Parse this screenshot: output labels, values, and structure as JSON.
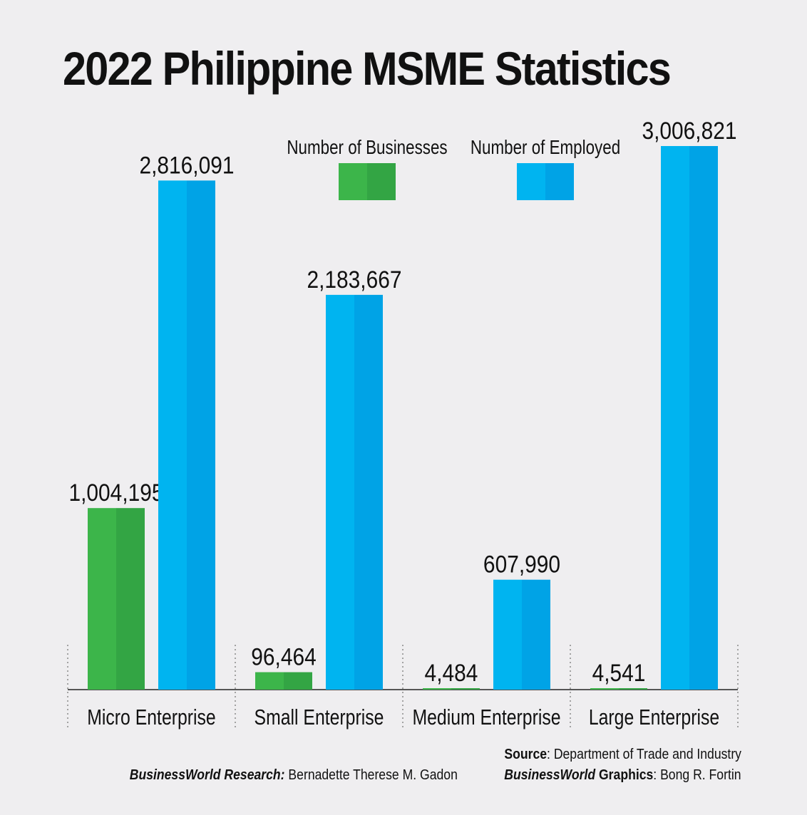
{
  "title": "2022 Philippine MSME Statistics",
  "chart_data": {
    "type": "bar",
    "title": "2022 Philippine MSME Statistics",
    "categories": [
      "Micro Enterprise",
      "Small Enterprise",
      "Medium Enterprise",
      "Large Enterprise"
    ],
    "series": [
      {
        "name": "Number of Businesses",
        "values": [
          1004195,
          96464,
          4484,
          4541
        ],
        "labels": [
          "1,004,195",
          "96,464",
          "4,484",
          "4,541"
        ],
        "color": "#3cb54a",
        "shade": "#33a544"
      },
      {
        "name": "Number of Employed",
        "values": [
          2816091,
          2183667,
          607990,
          3006821
        ],
        "labels": [
          "2,816,091",
          "2,183,667",
          "607,990",
          "3,006,821"
        ],
        "color": "#00b4f0",
        "shade": "#00a3e6"
      }
    ],
    "ylim": [
      0,
      3000000
    ],
    "grid": false,
    "legend": "top-center"
  },
  "footer": {
    "source_label": "Source",
    "source_text": ": Department of Trade and Industry",
    "research_label": "BusinessWorld Research:",
    "research_text": " Bernadette Therese M. Gadon",
    "graphics_brand": "BusinessWorld",
    "graphics_label": " Graphics",
    "graphics_text": ": Bong R. Fortin"
  }
}
